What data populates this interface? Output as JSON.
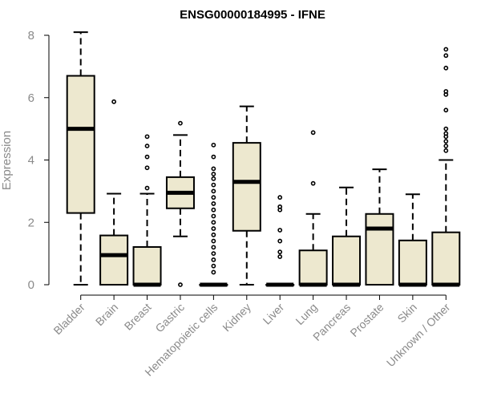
{
  "chart_data": {
    "type": "boxplot",
    "title": "ENSG00000184995 - IFNE",
    "xlabel": "",
    "ylabel": "Expression",
    "ylim": [
      0,
      8.2
    ],
    "yticks": [
      0,
      2,
      4,
      6,
      8
    ],
    "box_fill": "#ede8cf",
    "categories": [
      "Bladder",
      "Brain",
      "Breast",
      "Gastric",
      "Hematopoietic cells",
      "Kidney",
      "Liver",
      "Lung",
      "Pancreas",
      "Prostate",
      "Skin",
      "Unknown / Other"
    ],
    "series": [
      {
        "category": "Bladder",
        "whisker_low": 0,
        "q1": 2.3,
        "median": 5.0,
        "q3": 6.7,
        "whisker_high": 8.1,
        "outliers": []
      },
      {
        "category": "Brain",
        "whisker_low": 0,
        "q1": 0,
        "median": 0.95,
        "q3": 1.58,
        "whisker_high": 2.92,
        "outliers": [
          5.87
        ]
      },
      {
        "category": "Breast",
        "whisker_low": 0,
        "q1": 0,
        "median": 0,
        "q3": 1.21,
        "whisker_high": 2.92,
        "outliers": [
          3.1,
          3.75,
          4.1,
          4.45,
          4.75
        ]
      },
      {
        "category": "Gastric",
        "whisker_low": 1.55,
        "q1": 2.45,
        "median": 2.95,
        "q3": 3.45,
        "whisker_high": 4.8,
        "outliers": [
          0,
          5.18
        ]
      },
      {
        "category": "Hematopoietic cells",
        "whisker_low": 0,
        "q1": 0,
        "median": 0,
        "q3": 0,
        "whisker_high": 0,
        "outliers": [
          0.4,
          0.6,
          0.8,
          1.0,
          1.2,
          1.4,
          1.6,
          1.8,
          2.0,
          2.2,
          2.4,
          2.6,
          2.8,
          3.0,
          3.2,
          3.4,
          3.55,
          3.72,
          4.1,
          4.48
        ]
      },
      {
        "category": "Kidney",
        "whisker_low": 0,
        "q1": 1.73,
        "median": 3.3,
        "q3": 4.55,
        "whisker_high": 5.72,
        "outliers": []
      },
      {
        "category": "Liver",
        "whisker_low": 0,
        "q1": 0,
        "median": 0,
        "q3": 0,
        "whisker_high": 0,
        "outliers": [
          0.9,
          1.05,
          1.4,
          1.75,
          2.4,
          2.5,
          2.8
        ]
      },
      {
        "category": "Lung",
        "whisker_low": 0,
        "q1": 0,
        "median": 0,
        "q3": 1.1,
        "whisker_high": 2.27,
        "outliers": [
          3.25,
          4.88
        ]
      },
      {
        "category": "Pancreas",
        "whisker_low": 0,
        "q1": 0,
        "median": 0,
        "q3": 1.55,
        "whisker_high": 3.12,
        "outliers": []
      },
      {
        "category": "Prostate",
        "whisker_low": 0,
        "q1": 0,
        "median": 1.8,
        "q3": 2.27,
        "whisker_high": 3.7,
        "outliers": []
      },
      {
        "category": "Skin",
        "whisker_low": 0,
        "q1": 0,
        "median": 0,
        "q3": 1.42,
        "whisker_high": 2.9,
        "outliers": []
      },
      {
        "category": "Unknown / Other",
        "whisker_low": 0,
        "q1": 0,
        "median": 0,
        "q3": 1.68,
        "whisker_high": 4.0,
        "outliers": [
          4.3,
          4.45,
          4.6,
          4.75,
          4.85,
          5.0,
          5.6,
          6.1,
          6.2,
          6.95,
          7.35,
          7.55
        ]
      }
    ]
  }
}
